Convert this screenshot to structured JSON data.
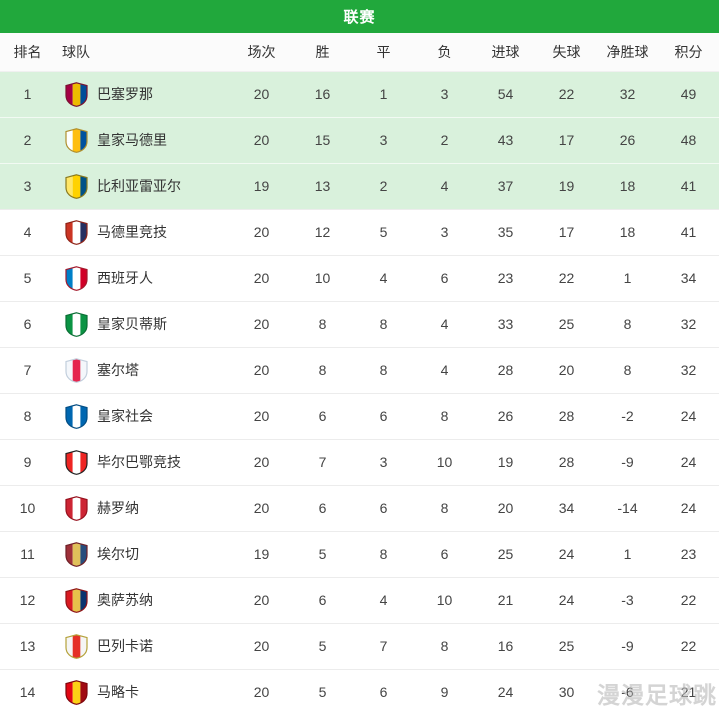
{
  "header": {
    "title": "联赛"
  },
  "columns": [
    "排名",
    "球队",
    "场次",
    "胜",
    "平",
    "负",
    "进球",
    "失球",
    "净胜球",
    "积分"
  ],
  "table": {
    "rows": [
      {
        "rank": "1",
        "team": "巴塞罗那",
        "logo": {
          "id": "barcelona",
          "colors": [
            "#a50044",
            "#edbb00",
            "#004d98"
          ],
          "border": "#7a1230"
        },
        "stats": [
          "20",
          "16",
          "1",
          "3",
          "54",
          "22",
          "32",
          "49"
        ],
        "highlight": true
      },
      {
        "rank": "2",
        "team": "皇家马德里",
        "logo": {
          "id": "real-madrid",
          "colors": [
            "#ffffff",
            "#febe10",
            "#00529f"
          ],
          "border": "#b08f2e"
        },
        "stats": [
          "20",
          "15",
          "3",
          "2",
          "43",
          "17",
          "26",
          "48"
        ],
        "highlight": true
      },
      {
        "rank": "3",
        "team": "比利亚雷亚尔",
        "logo": {
          "id": "villarreal",
          "colors": [
            "#ffe667",
            "#ffd200",
            "#005187"
          ],
          "border": "#8a7a1e"
        },
        "stats": [
          "19",
          "13",
          "2",
          "4",
          "37",
          "19",
          "18",
          "41"
        ],
        "highlight": true
      },
      {
        "rank": "4",
        "team": "马德里竞技",
        "logo": {
          "id": "atletico-madrid",
          "colors": [
            "#cb3524",
            "#ffffff",
            "#262f61"
          ],
          "border": "#8e2317"
        },
        "stats": [
          "20",
          "12",
          "5",
          "3",
          "35",
          "17",
          "18",
          "41"
        ],
        "highlight": false
      },
      {
        "rank": "5",
        "team": "西班牙人",
        "logo": {
          "id": "espanyol",
          "colors": [
            "#007fc8",
            "#ffffff",
            "#d00027"
          ],
          "border": "#a3192c"
        },
        "stats": [
          "20",
          "10",
          "4",
          "6",
          "23",
          "22",
          "1",
          "34"
        ],
        "highlight": false
      },
      {
        "rank": "6",
        "team": "皇家贝蒂斯",
        "logo": {
          "id": "real-betis",
          "colors": [
            "#0b9444",
            "#ffffff",
            "#0b9444"
          ],
          "border": "#0a6e34"
        },
        "stats": [
          "20",
          "8",
          "8",
          "4",
          "33",
          "25",
          "8",
          "32"
        ],
        "highlight": false
      },
      {
        "rank": "7",
        "team": "塞尔塔",
        "logo": {
          "id": "celta",
          "colors": [
            "#f4f7fb",
            "#e5254e",
            "#f4f7fb"
          ],
          "border": "#c2cfdd"
        },
        "stats": [
          "20",
          "8",
          "8",
          "4",
          "28",
          "20",
          "8",
          "32"
        ],
        "highlight": false
      },
      {
        "rank": "8",
        "team": "皇家社会",
        "logo": {
          "id": "real-sociedad",
          "colors": [
            "#0067b1",
            "#ffffff",
            "#0067b1"
          ],
          "border": "#034d83"
        },
        "stats": [
          "20",
          "6",
          "6",
          "8",
          "26",
          "28",
          "-2",
          "24"
        ],
        "highlight": false
      },
      {
        "rank": "9",
        "team": "毕尔巴鄂竞技",
        "logo": {
          "id": "athletic-bilbao",
          "colors": [
            "#ee2523",
            "#ffffff",
            "#ee2523"
          ],
          "border": "#222222"
        },
        "stats": [
          "20",
          "7",
          "3",
          "10",
          "19",
          "28",
          "-9",
          "24"
        ],
        "highlight": false
      },
      {
        "rank": "10",
        "team": "赫罗纳",
        "logo": {
          "id": "girona",
          "colors": [
            "#cd2534",
            "#ffffff",
            "#cd2534"
          ],
          "border": "#96101d"
        },
        "stats": [
          "20",
          "6",
          "6",
          "8",
          "20",
          "34",
          "-14",
          "24"
        ],
        "highlight": false
      },
      {
        "rank": "11",
        "team": "埃尔切",
        "logo": {
          "id": "elche",
          "colors": [
            "#9e3039",
            "#e0c05a",
            "#274d7d"
          ],
          "border": "#6e2027"
        },
        "stats": [
          "19",
          "5",
          "8",
          "6",
          "25",
          "24",
          "1",
          "23"
        ],
        "highlight": false
      },
      {
        "rank": "12",
        "team": "奥萨苏纳",
        "logo": {
          "id": "osasuna",
          "colors": [
            "#d91a21",
            "#e7c14b",
            "#0a346f"
          ],
          "border": "#8f1217"
        },
        "stats": [
          "20",
          "6",
          "4",
          "10",
          "21",
          "24",
          "-3",
          "22"
        ],
        "highlight": false
      },
      {
        "rank": "13",
        "team": "巴列卡诺",
        "logo": {
          "id": "rayo-vallecano",
          "colors": [
            "#f5f5f5",
            "#e53027",
            "#f5f5f5"
          ],
          "border": "#b5a23a"
        },
        "stats": [
          "20",
          "5",
          "7",
          "8",
          "16",
          "25",
          "-9",
          "22"
        ],
        "highlight": false
      },
      {
        "rank": "14",
        "team": "马略卡",
        "logo": {
          "id": "mallorca",
          "colors": [
            "#e20613",
            "#fcd116",
            "#a00a12"
          ],
          "border": "#7d060d"
        },
        "stats": [
          "20",
          "5",
          "6",
          "9",
          "24",
          "30",
          "-6",
          "21"
        ],
        "highlight": false
      }
    ]
  },
  "watermark": "漫漫足球跳",
  "colors": {
    "header_green": "#21a83c",
    "highlight_row": "#d9f1dc"
  }
}
